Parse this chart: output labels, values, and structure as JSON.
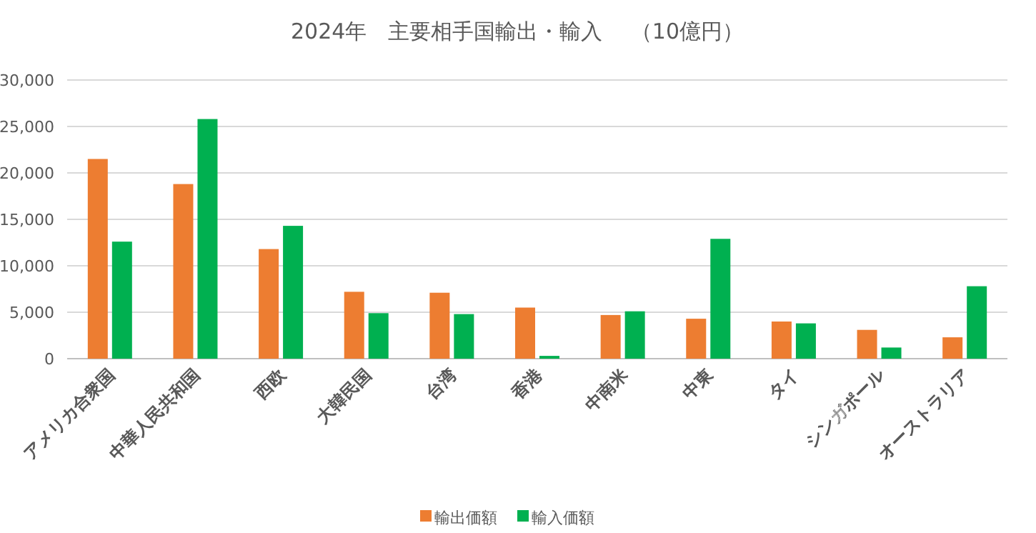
{
  "chart_data": {
    "type": "bar",
    "title": "2024年　主要相手国輸出・輸入　 （10億円）",
    "categories": [
      "アメリカ合衆国",
      "中華人民共和国",
      "西欧",
      "大韓民国",
      "台湾",
      "香港",
      "中南米",
      "中東",
      "タイ",
      "シンガポール",
      "オーストラリア"
    ],
    "series": [
      {
        "name": "輸出価額",
        "color": "#ed7d31",
        "values": [
          21500,
          18800,
          11800,
          7200,
          7100,
          5500,
          4700,
          4300,
          4000,
          3100,
          2300
        ]
      },
      {
        "name": "輸入価額",
        "color": "#00b050",
        "values": [
          12600,
          25800,
          14300,
          4900,
          4800,
          300,
          5100,
          12900,
          3800,
          1200,
          7800
        ]
      }
    ],
    "ylim": [
      0,
      30000
    ],
    "yticks": [
      {
        "value": 0,
        "label": "0"
      },
      {
        "value": 5000,
        "label": "5,000"
      },
      {
        "value": 10000,
        "label": "10,000"
      },
      {
        "value": 15000,
        "label": "15,000"
      },
      {
        "value": 20000,
        "label": "20,000"
      },
      {
        "value": 25000,
        "label": "25,000"
      },
      {
        "value": 30000,
        "label": "30,000"
      }
    ],
    "grid": "y",
    "legend": "bottom"
  }
}
